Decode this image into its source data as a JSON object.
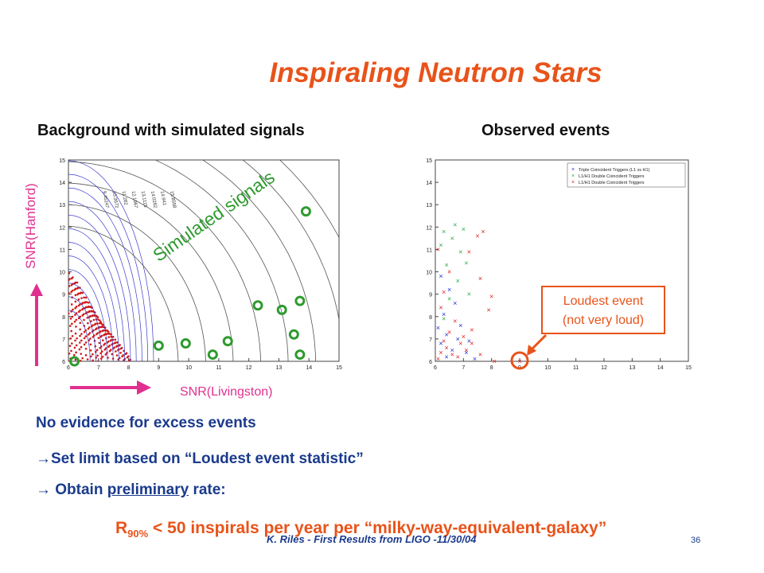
{
  "slide": {
    "title": "Inspiraling Neutron Stars",
    "left_heading": "Background with simulated signals",
    "right_heading": "Observed events",
    "y_arrow_label": "SNR(Hanford)",
    "x_arrow_label": "SNR(Livingston)",
    "simulated_label": "Simulated signals",
    "loudest_line1": "Loudest event",
    "loudest_line2": "(not very loud)",
    "line1": "No evidence for excess events",
    "line2": "Set limit based on “Loudest event statistic”",
    "line3_pre": " Obtain ",
    "line3_ul": "preliminary",
    "line3_post": " rate:",
    "rate_R": "R",
    "rate_sub": "90%",
    "rate_text": " < 50 inspirals per year per “milky-way-equivalent-galaxy”",
    "footer": "K. Riles - First Results from LIGO -11/30/04",
    "page_number": "36",
    "arrow_glyph": "→"
  },
  "colors": {
    "title": "#e8531a",
    "body": "#1a3a8c",
    "arrow": "#e0308f",
    "signal": "#2e9a2e"
  },
  "chart_data": [
    {
      "type": "scatter",
      "title": "",
      "xlabel": "",
      "ylabel": "",
      "xlim": [
        6,
        15
      ],
      "ylim": [
        6,
        15
      ],
      "x_ticks": [
        "6",
        "7",
        "8",
        "9",
        "10",
        "11",
        "12",
        "13",
        "14",
        "15"
      ],
      "y_ticks": [
        "6",
        "7",
        "8",
        "9",
        "10",
        "11",
        "12",
        "13",
        "14",
        "15"
      ],
      "contour_labels": [
        "9.45247",
        "10.3672",
        "11.282",
        "12.1967",
        "13.1115",
        "14.0262",
        "14.941",
        "15.8558"
      ],
      "series": [
        {
          "name": "Simulated signals",
          "points": [
            [
              6.2,
              6.0
            ],
            [
              9.0,
              6.7
            ],
            [
              9.9,
              6.8
            ],
            [
              10.8,
              6.3
            ],
            [
              11.3,
              6.9
            ],
            [
              12.3,
              8.5
            ],
            [
              13.1,
              8.3
            ],
            [
              13.5,
              7.2
            ],
            [
              13.7,
              8.7
            ],
            [
              13.9,
              12.7
            ],
            [
              13.7,
              6.3
            ]
          ]
        }
      ]
    },
    {
      "type": "scatter",
      "title": "",
      "xlabel": "",
      "ylabel": "",
      "xlim": [
        6,
        15
      ],
      "ylim": [
        6,
        15
      ],
      "x_ticks": [
        "6",
        "7",
        "8",
        "9",
        "10",
        "11",
        "12",
        "13",
        "14",
        "15"
      ],
      "y_ticks": [
        "6",
        "7",
        "8",
        "9",
        "10",
        "11",
        "12",
        "13",
        "14",
        "15"
      ],
      "legend_position": "top-right",
      "series": [
        {
          "name": "Triple Coincident Triggers (L1 vs H1)",
          "color": "#1f2ed6",
          "points": [
            [
              6.2,
              6.8
            ],
            [
              6.4,
              7.2
            ],
            [
              6.6,
              6.5
            ],
            [
              6.3,
              8.1
            ],
            [
              6.8,
              7.0
            ],
            [
              7.1,
              6.4
            ],
            [
              6.5,
              9.2
            ],
            [
              6.9,
              7.6
            ],
            [
              7.2,
              6.9
            ],
            [
              6.1,
              7.5
            ],
            [
              6.7,
              8.6
            ],
            [
              6.4,
              6.2
            ],
            [
              7.4,
              6.1
            ],
            [
              6.2,
              9.8
            ]
          ]
        },
        {
          "name": "L1/H1 Double Coincident Triggers",
          "color": "#2ea84a",
          "points": [
            [
              6.3,
              11.8
            ],
            [
              6.6,
              11.5
            ],
            [
              6.9,
              10.9
            ],
            [
              6.4,
              10.3
            ],
            [
              6.8,
              9.6
            ],
            [
              7.1,
              10.4
            ],
            [
              6.5,
              8.8
            ],
            [
              7.2,
              9.0
            ],
            [
              6.2,
              11.2
            ],
            [
              7.0,
              11.9
            ],
            [
              6.7,
              12.1
            ],
            [
              6.3,
              7.9
            ]
          ]
        },
        {
          "name": "L1/H1 Double Coincident Triggers",
          "color": "#e02020",
          "points": [
            [
              6.1,
              6.1
            ],
            [
              6.2,
              6.4
            ],
            [
              6.3,
              6.9
            ],
            [
              6.4,
              6.6
            ],
            [
              6.5,
              7.3
            ],
            [
              6.6,
              6.3
            ],
            [
              6.7,
              7.8
            ],
            [
              6.8,
              6.2
            ],
            [
              6.9,
              6.8
            ],
            [
              7.0,
              7.1
            ],
            [
              7.1,
              6.5
            ],
            [
              7.3,
              7.4
            ],
            [
              6.2,
              8.4
            ],
            [
              6.3,
              9.1
            ],
            [
              6.5,
              10.0
            ],
            [
              7.5,
              11.6
            ],
            [
              7.7,
              11.8
            ],
            [
              7.9,
              8.3
            ],
            [
              8.0,
              8.9
            ],
            [
              7.6,
              9.7
            ],
            [
              7.2,
              10.9
            ],
            [
              6.1,
              11.0
            ],
            [
              7.3,
              6.8
            ],
            [
              7.6,
              6.3
            ],
            [
              8.1,
              6.0
            ],
            [
              9.0,
              6.0
            ]
          ]
        }
      ]
    }
  ]
}
